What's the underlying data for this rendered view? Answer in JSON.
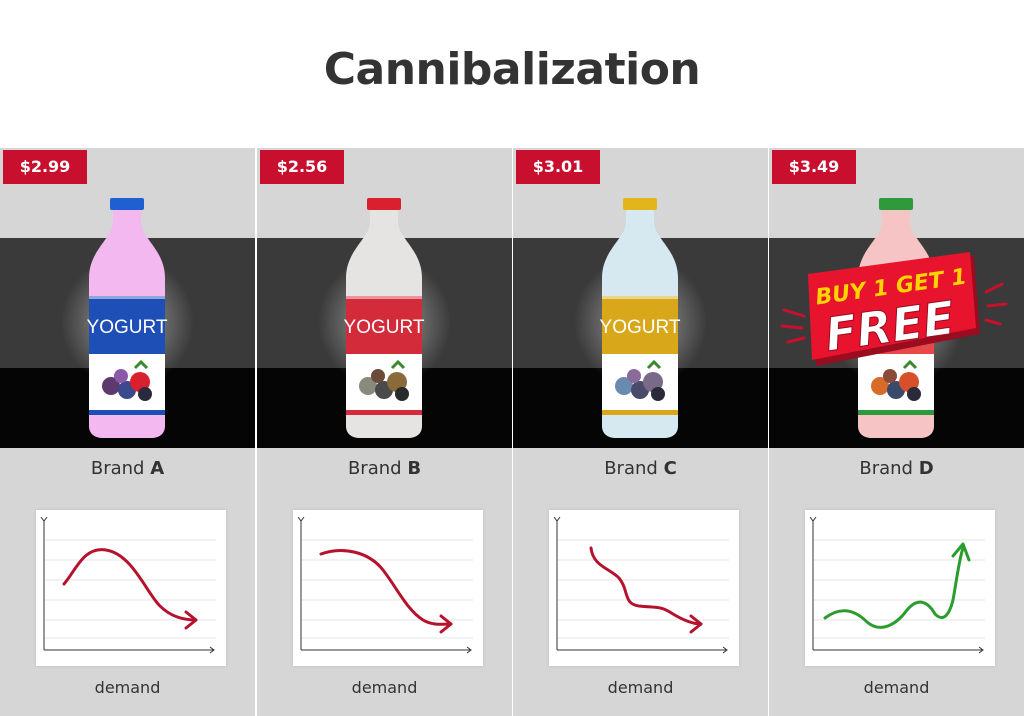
{
  "title": "Cannibalization",
  "yogurt_label": "YOGURT",
  "promo": {
    "line1": "BUY 1 GET 1",
    "line2": "FREE"
  },
  "brands": [
    {
      "price": "$2.99",
      "prefix": "Brand",
      "letter": "A",
      "demand_label": "demand",
      "cap_color": "#1f5fd1",
      "bottle_color": "#f2b8ef",
      "label_color": "#1e4fb6",
      "trend": "decline"
    },
    {
      "price": "$2.56",
      "prefix": "Brand",
      "letter": "B",
      "demand_label": "demand",
      "cap_color": "#d8202e",
      "bottle_color": "#e6e3e3",
      "label_color": "#d32b3a",
      "trend": "decline"
    },
    {
      "price": "$3.01",
      "prefix": "Brand",
      "letter": "C",
      "demand_label": "demand",
      "cap_color": "#e3b51c",
      "bottle_color": "#d6e8f0",
      "label_color": "#d9a81a",
      "trend": "decline"
    },
    {
      "price": "$3.49",
      "prefix": "Brand",
      "letter": "D",
      "demand_label": "demand",
      "cap_color": "#2d9a3b",
      "bottle_color": "#f6c4c4",
      "label_color": "#e84848",
      "trend": "increase"
    }
  ],
  "colors": {
    "price_tag": "#c8102e",
    "decline_line": "#b5122e",
    "increase_line": "#2a9d2e"
  }
}
